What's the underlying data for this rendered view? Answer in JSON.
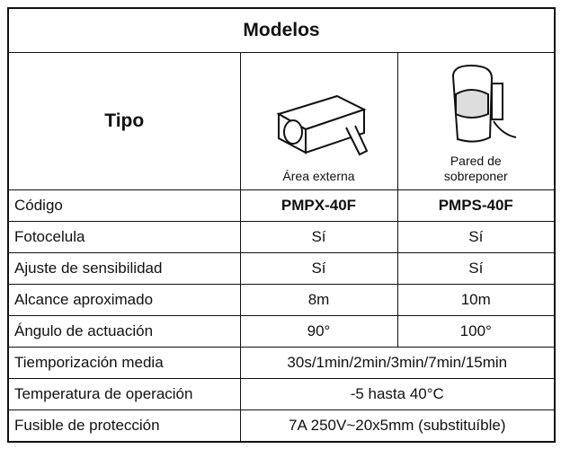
{
  "table": {
    "title": "Modelos",
    "type_label": "Tipo",
    "models": [
      "Área externa",
      "Pared de sobreponer"
    ],
    "rows": [
      [
        "Código",
        "PMPX-40F",
        "PMPS-40F"
      ],
      [
        "Fotocelula",
        "Sí",
        "Sí"
      ],
      [
        "Ajuste de sensibilidad",
        "Sí",
        "Sí"
      ],
      [
        "Alcance aproximado",
        "8m",
        "10m"
      ],
      [
        "Ángulo de actuación",
        "90°",
        "100°"
      ],
      [
        "Tiemporización media",
        "30s/1min/2min/3min/7min/15min"
      ],
      [
        "Temperatura de operación",
        "-5 hasta 40°C"
      ],
      [
        "Fusible de protección",
        "7A 250V~20x5mm (substituíble)"
      ]
    ]
  }
}
